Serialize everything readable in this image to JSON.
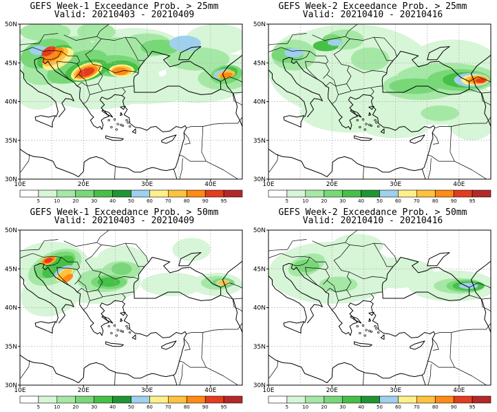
{
  "panels": [
    {
      "id": "week1-25mm",
      "title": "GEFS Week-1 Exceedance Prob. > 25mm",
      "valid": "Valid: 20210403 - 20210409"
    },
    {
      "id": "week2-25mm",
      "title": "GEFS Week-2 Exceedance Prob. > 25mm",
      "valid": "Valid: 20210410 - 20210416"
    },
    {
      "id": "week1-50mm",
      "title": "GEFS Week-1 Exceedance Prob. > 50mm",
      "valid": "Valid: 20210403 - 20210409"
    },
    {
      "id": "week2-50mm",
      "title": "GEFS Week-2 Exceedance Prob. > 50mm",
      "valid": "Valid: 20210410 - 20210416"
    }
  ],
  "map": {
    "lon_range": [
      10,
      45
    ],
    "lat_range": [
      30,
      50
    ],
    "lon_ticks": [
      10,
      20,
      30,
      40
    ],
    "lon_tick_labels": [
      "10E",
      "20E",
      "30E",
      "40E"
    ],
    "lat_ticks": [
      30,
      35,
      40,
      45,
      50
    ],
    "lat_tick_labels": [
      "30N",
      "35N",
      "40N",
      "45N",
      "50N"
    ],
    "gridlines": "dashed"
  },
  "colorbar": {
    "levels": [
      "5",
      "10",
      "20",
      "30",
      "40",
      "50",
      "60",
      "70",
      "80",
      "90",
      "95"
    ],
    "colors": [
      "#ffffff",
      "#d7f5d7",
      "#a5e8a5",
      "#78d878",
      "#46c046",
      "#1e9632",
      "#9fd0ee",
      "#fff08c",
      "#ffc23c",
      "#ff8a14",
      "#e43c1e",
      "#b42828"
    ]
  },
  "land_color": "#ffffff",
  "coast_color": "#000000"
}
